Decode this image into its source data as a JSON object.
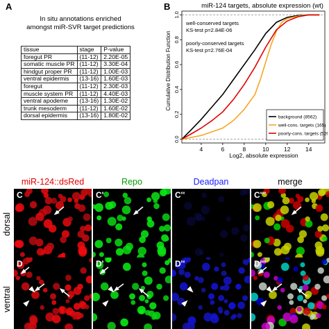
{
  "panel_a": {
    "label": "A",
    "heading_line1": "In situ annotations enriched",
    "heading_line2": "amongst miR-SVR target predictions",
    "columns": [
      "tissue",
      "stage",
      "P-value"
    ],
    "rows": [
      [
        "foregut PR",
        "(11-12)",
        "2.20E-05"
      ],
      [
        "somatic muscle PR",
        "(11-12)",
        "3.30E-04"
      ],
      [
        "hindgut proper PR",
        "(11-12)",
        "1.00E-03"
      ],
      [
        "ventral epidermis",
        "(13-16)",
        "1.60E-03"
      ],
      [
        "foregut",
        "(11-12)",
        "2.30E-03"
      ],
      [
        "muscle system PR",
        "(11-12)",
        "4.40E-03"
      ],
      [
        "ventral apodeme",
        "(13-16)",
        "1.30E-02"
      ],
      [
        "trunk mesoderm",
        "(11-12)",
        "1.60E-02"
      ],
      [
        "dorsal epidermis",
        "(13-16)",
        "1.80E-02"
      ]
    ]
  },
  "panel_b": {
    "label": "B",
    "annotation_well_title": "well-conserved targets",
    "annotation_well_stat": "KS-test   p=2.84E-06",
    "annotation_poor_title": "poorly-conserved targets",
    "annotation_poor_stat": "KS-test   p=2.76E-04"
  },
  "chart_data": {
    "type": "line",
    "title": "miR-124 targets, absolute expression (wt)",
    "xlabel": "Log2, absolute expression",
    "ylabel": "Cumulative Distribution Function",
    "xlim": [
      2.2,
      15.5
    ],
    "ylim": [
      -0.03,
      1.03
    ],
    "xticks": [
      4,
      6,
      8,
      10,
      12,
      14
    ],
    "yticks": [
      0.0,
      0.2,
      0.4,
      0.6,
      0.8,
      1.0
    ],
    "ytick_labels": [
      "0.0",
      "0.2",
      "0.4",
      "0.6",
      "0.8",
      "1.0"
    ],
    "reference_lines": [
      0,
      1
    ],
    "legend_position": "bottom-right",
    "series": [
      {
        "name": "background (8562)",
        "color": "#000000",
        "x": [
          2.2,
          3,
          4,
          5,
          6,
          7,
          8,
          9,
          10,
          11,
          12,
          13,
          14,
          15
        ],
        "y": [
          0.0,
          0.07,
          0.16,
          0.26,
          0.36,
          0.48,
          0.6,
          0.72,
          0.85,
          0.94,
          0.98,
          0.995,
          1.0,
          1.0
        ]
      },
      {
        "name": "well-cons. targets (165)",
        "color": "#f5a623",
        "x": [
          2.2,
          4,
          6,
          7,
          8,
          9,
          9.5,
          10,
          10.5,
          11,
          11.5,
          12,
          13,
          14,
          15
        ],
        "y": [
          0.0,
          0.03,
          0.09,
          0.15,
          0.24,
          0.36,
          0.48,
          0.62,
          0.76,
          0.87,
          0.94,
          0.97,
          0.99,
          1.0,
          1.0
        ]
      },
      {
        "name": "poorly-cons. targets (526)",
        "color": "#e00000",
        "x": [
          2.2,
          3,
          4,
          5,
          6,
          7,
          8,
          9,
          10,
          11,
          12,
          13,
          14,
          15
        ],
        "y": [
          0.0,
          0.04,
          0.09,
          0.15,
          0.22,
          0.32,
          0.44,
          0.58,
          0.74,
          0.88,
          0.95,
          0.985,
          1.0,
          1.0
        ]
      }
    ]
  },
  "panel_cd": {
    "channels": [
      "miR-124::dsRed",
      "Repo",
      "Deadpan",
      "merge"
    ],
    "channel_colors": [
      "#e00000",
      "#00a000",
      "#1a1aff",
      "#000000"
    ],
    "rows": [
      "dorsal",
      "ventral"
    ],
    "labels_c": [
      "C",
      "C'",
      "C''",
      "C'''"
    ],
    "labels_d": [
      "D",
      "D'",
      "D''",
      "D'''"
    ]
  }
}
